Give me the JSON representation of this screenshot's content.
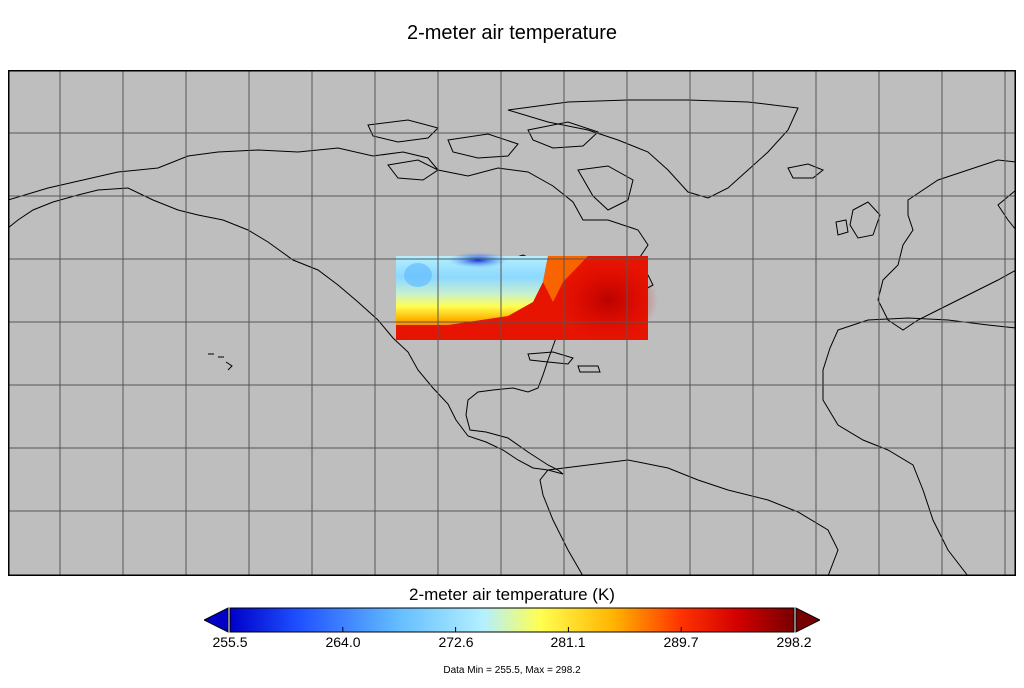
{
  "title": "2-meter air temperature",
  "colorbar": {
    "title": "2-meter air temperature (K)",
    "ticks": [
      "255.5",
      "264.0",
      "272.6",
      "281.1",
      "289.7",
      "298.2"
    ],
    "min": 255.5,
    "max": 298.2,
    "colors": [
      "#0000c8",
      "#1e50ff",
      "#64beff",
      "#b4f0ff",
      "#ffff50",
      "#ffb400",
      "#ff3200",
      "#d20000",
      "#780000"
    ]
  },
  "data_range_text": "Data Min = 255.5, Max = 298.2",
  "map": {
    "ocean_color": "#bebebe",
    "land_outline_color": "#000000",
    "region": "continental United States"
  }
}
